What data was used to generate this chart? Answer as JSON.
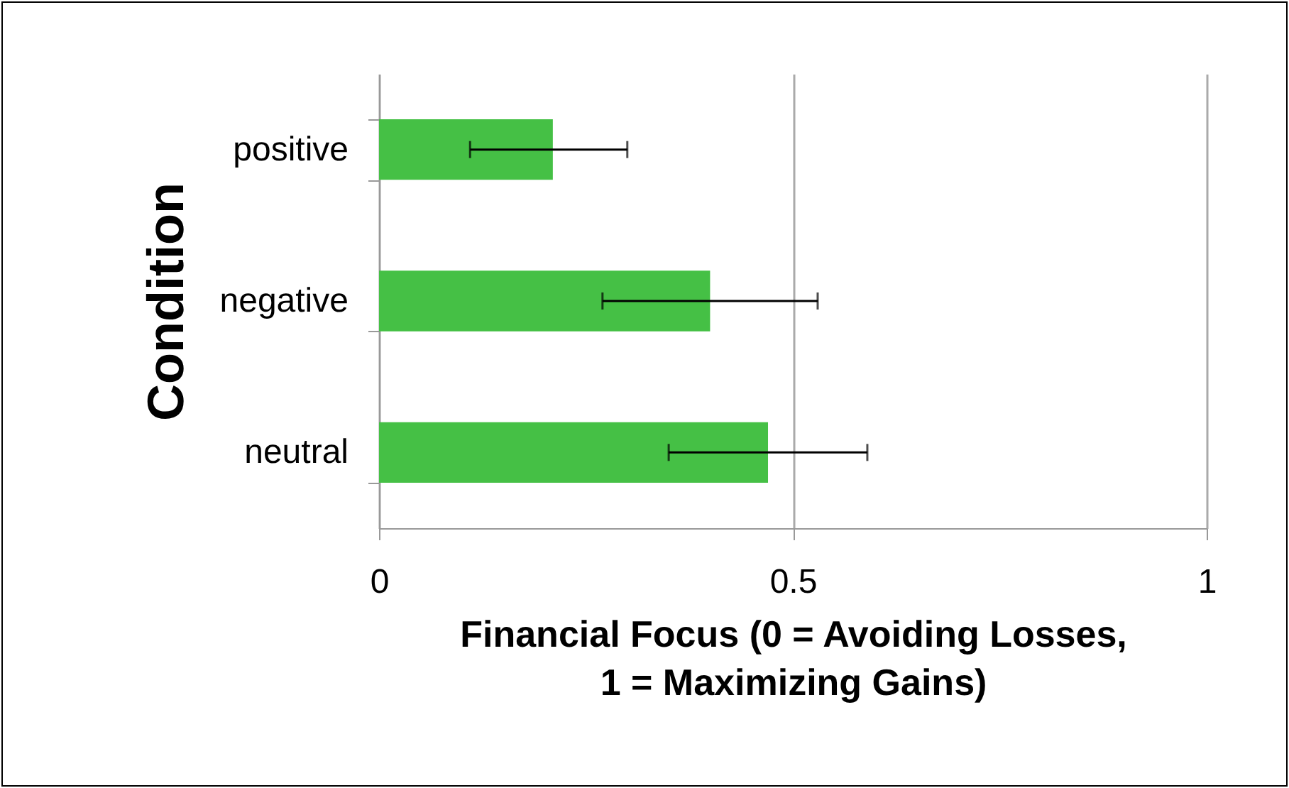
{
  "chart_data": {
    "type": "bar",
    "orientation": "horizontal",
    "xlabel": "Financial Focus (0 = Avoiding Losses,\n1 = Maximizing Gains)",
    "ylabel": "Condition",
    "categories": [
      "positive",
      "negative",
      "neutral"
    ],
    "values": [
      0.21,
      0.4,
      0.47
    ],
    "errors": [
      [
        0.11,
        0.3
      ],
      [
        0.27,
        0.53
      ],
      [
        0.35,
        0.59
      ]
    ],
    "color": "#45c045",
    "xlim": [
      0,
      1
    ],
    "xticks": [
      0,
      0.5,
      1
    ],
    "grid": "x"
  }
}
